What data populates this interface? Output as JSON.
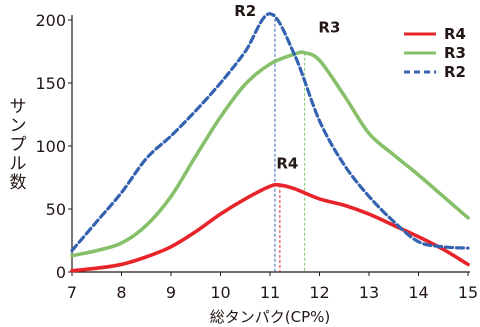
{
  "chart_data": {
    "type": "line",
    "title": "",
    "xlabel": "総タンパク(CP%)",
    "ylabel": "サンプル数",
    "xlim": [
      7,
      15
    ],
    "ylim": [
      0,
      200
    ],
    "x_ticks": [
      "7",
      "8",
      "9",
      "10",
      "11",
      "12",
      "13",
      "14",
      "15"
    ],
    "y_ticks": [
      "0",
      "50",
      "100",
      "150",
      "200"
    ],
    "grid": false,
    "legend_position": "top-right",
    "series": [
      {
        "name": "R4",
        "color": "#e8242b",
        "style": "solid",
        "x": [
          7,
          7.5,
          8,
          8.5,
          9,
          9.5,
          10,
          10.5,
          11,
          11.2,
          11.5,
          12,
          12.5,
          13,
          13.5,
          14,
          14.5,
          15
        ],
        "y": [
          1,
          3,
          6,
          12,
          20,
          32,
          46,
          58,
          68,
          69,
          66,
          58,
          53,
          46,
          37,
          28,
          18,
          6
        ]
      },
      {
        "name": "R3",
        "color": "#86c06a",
        "style": "solid",
        "x": [
          7,
          7.5,
          8,
          8.5,
          9,
          9.5,
          10,
          10.5,
          11,
          11.5,
          11.7,
          12,
          12.5,
          13,
          13.5,
          14,
          14.5,
          15
        ],
        "y": [
          13,
          17,
          23,
          37,
          60,
          92,
          123,
          149,
          165,
          173,
          174,
          168,
          140,
          110,
          93,
          77,
          60,
          43
        ]
      },
      {
        "name": "R2",
        "color": "#3462b0",
        "style": "dashed",
        "x": [
          7,
          7.5,
          8,
          8.5,
          9,
          9.5,
          10,
          10.5,
          11,
          11.5,
          12,
          12.5,
          13,
          13.5,
          14,
          14.5,
          15
        ],
        "y": [
          17,
          40,
          63,
          90,
          108,
          128,
          150,
          175,
          205,
          172,
          120,
          85,
          60,
          40,
          24,
          20,
          19
        ]
      }
    ],
    "annotations": [
      {
        "text": "R2",
        "x": 10.5,
        "y": 203
      },
      {
        "text": "R3",
        "x": 12.2,
        "y": 190
      },
      {
        "text": "R4",
        "x": 11.35,
        "y": 82
      }
    ],
    "peak_markers": [
      {
        "series": "R2",
        "x": 11.1,
        "y": 205,
        "color": "#3462b0"
      },
      {
        "series": "R3",
        "x": 11.7,
        "y": 174,
        "color": "#86c06a"
      },
      {
        "series": "R4",
        "x": 11.2,
        "y": 69,
        "color": "#e8242b"
      }
    ]
  }
}
